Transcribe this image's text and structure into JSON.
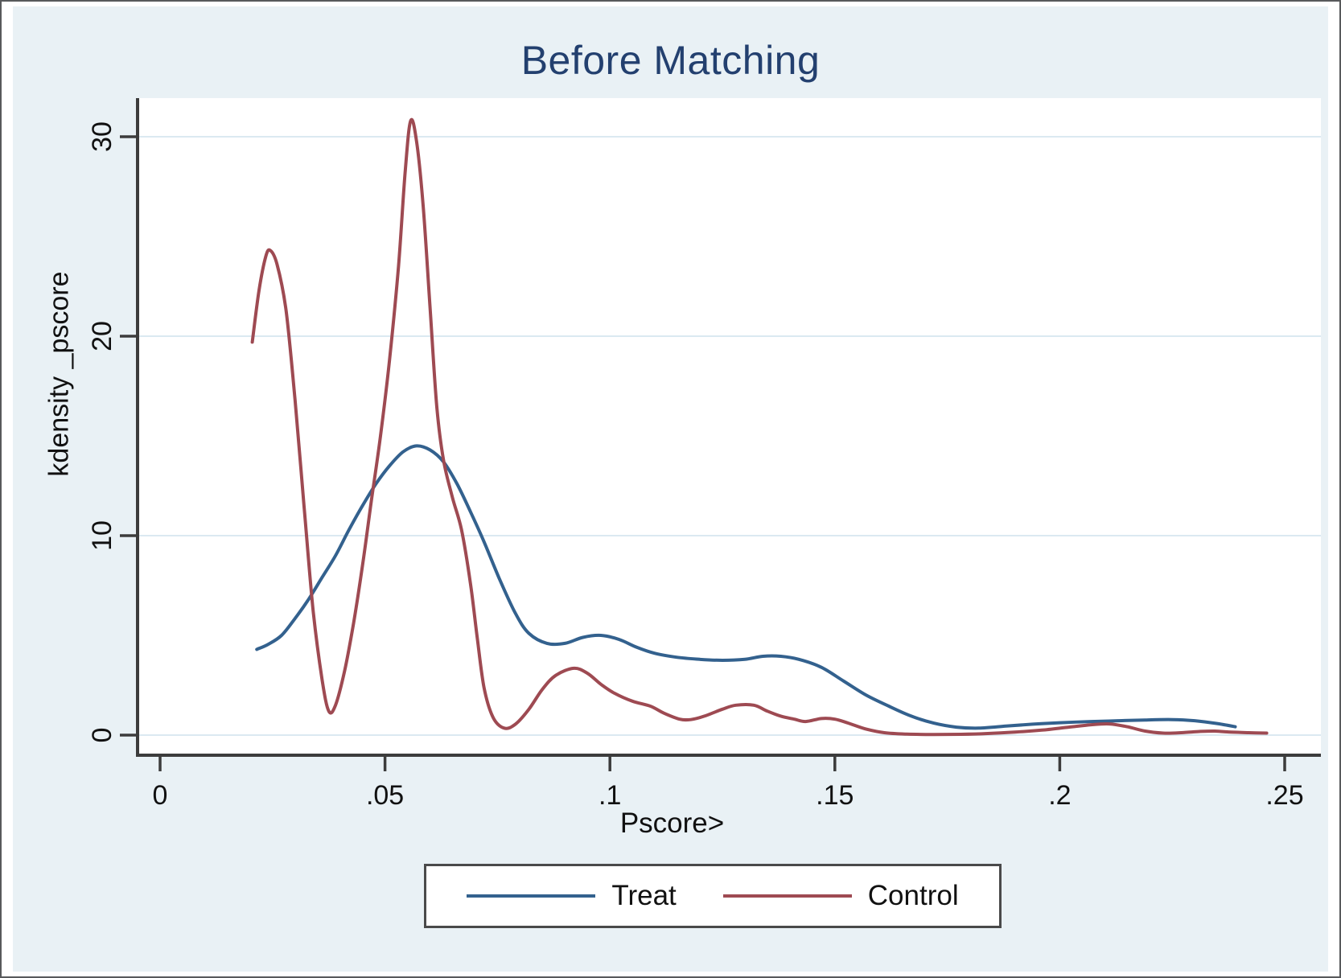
{
  "title": "Before Matching",
  "axes": {
    "x_title": "Pscore>",
    "y_title": "kdensity _pscore",
    "x_ticks": [
      {
        "value": 0,
        "label": "0"
      },
      {
        "value": 0.05,
        "label": ".05"
      },
      {
        "value": 0.1,
        "label": ".1"
      },
      {
        "value": 0.15,
        "label": ".15"
      },
      {
        "value": 0.2,
        "label": ".2"
      },
      {
        "value": 0.25,
        "label": ".25"
      }
    ],
    "y_ticks": [
      {
        "value": 0,
        "label": "0"
      },
      {
        "value": 10,
        "label": "10"
      },
      {
        "value": 20,
        "label": "20"
      },
      {
        "value": 30,
        "label": "30"
      }
    ]
  },
  "legend": {
    "items": [
      {
        "label": "Treat",
        "color": "#33618e"
      },
      {
        "label": "Control",
        "color": "#9e4a52"
      }
    ]
  },
  "colors": {
    "background": "#e9f1f5",
    "plot_background": "#ffffff",
    "gridline": "#dbe9f1",
    "axis": "#3c3c3c",
    "title_text": "#23406f",
    "treat_line": "#33618e",
    "control_line": "#9e4a52"
  },
  "chart_data": {
    "type": "line",
    "title": "Before Matching",
    "xlabel": "Pscore>",
    "ylabel": "kdensity _pscore",
    "xlim": [
      0,
      0.25
    ],
    "ylim": [
      0,
      31
    ],
    "grid": true,
    "legend_position": "bottom-center",
    "series": [
      {
        "name": "Treat",
        "color": "#33618e",
        "points": [
          [
            0.0215,
            4.3
          ],
          [
            0.024,
            4.55
          ],
          [
            0.027,
            5.0
          ],
          [
            0.03,
            5.85
          ],
          [
            0.033,
            6.8
          ],
          [
            0.036,
            7.9
          ],
          [
            0.039,
            9.0
          ],
          [
            0.042,
            10.3
          ],
          [
            0.045,
            11.5
          ],
          [
            0.048,
            12.6
          ],
          [
            0.051,
            13.5
          ],
          [
            0.054,
            14.2
          ],
          [
            0.057,
            14.5
          ],
          [
            0.06,
            14.3
          ],
          [
            0.063,
            13.7
          ],
          [
            0.066,
            12.6
          ],
          [
            0.069,
            11.2
          ],
          [
            0.072,
            9.7
          ],
          [
            0.0755,
            7.8
          ],
          [
            0.079,
            6.1
          ],
          [
            0.082,
            5.1
          ],
          [
            0.086,
            4.6
          ],
          [
            0.09,
            4.6
          ],
          [
            0.094,
            4.9
          ],
          [
            0.098,
            5.0
          ],
          [
            0.102,
            4.8
          ],
          [
            0.106,
            4.4
          ],
          [
            0.11,
            4.1
          ],
          [
            0.115,
            3.9
          ],
          [
            0.12,
            3.8
          ],
          [
            0.125,
            3.75
          ],
          [
            0.13,
            3.8
          ],
          [
            0.134,
            3.95
          ],
          [
            0.138,
            3.95
          ],
          [
            0.142,
            3.8
          ],
          [
            0.147,
            3.4
          ],
          [
            0.152,
            2.7
          ],
          [
            0.157,
            2.0
          ],
          [
            0.162,
            1.45
          ],
          [
            0.167,
            0.95
          ],
          [
            0.172,
            0.6
          ],
          [
            0.177,
            0.4
          ],
          [
            0.182,
            0.35
          ],
          [
            0.188,
            0.45
          ],
          [
            0.194,
            0.55
          ],
          [
            0.2,
            0.62
          ],
          [
            0.207,
            0.68
          ],
          [
            0.213,
            0.72
          ],
          [
            0.219,
            0.76
          ],
          [
            0.225,
            0.78
          ],
          [
            0.23,
            0.72
          ],
          [
            0.235,
            0.58
          ],
          [
            0.239,
            0.42
          ]
        ]
      },
      {
        "name": "Control",
        "color": "#9e4a52",
        "points": [
          [
            0.0205,
            19.7
          ],
          [
            0.022,
            22.3
          ],
          [
            0.0235,
            24.0
          ],
          [
            0.0245,
            24.3
          ],
          [
            0.026,
            23.6
          ],
          [
            0.028,
            21.3
          ],
          [
            0.03,
            16.8
          ],
          [
            0.032,
            11.5
          ],
          [
            0.034,
            6.3
          ],
          [
            0.036,
            2.8
          ],
          [
            0.0375,
            1.2
          ],
          [
            0.039,
            1.5
          ],
          [
            0.041,
            3.2
          ],
          [
            0.043,
            5.6
          ],
          [
            0.045,
            8.5
          ],
          [
            0.047,
            11.8
          ],
          [
            0.049,
            15.0
          ],
          [
            0.051,
            18.8
          ],
          [
            0.053,
            23.5
          ],
          [
            0.0545,
            28.3
          ],
          [
            0.0557,
            30.8
          ],
          [
            0.057,
            29.8
          ],
          [
            0.0585,
            26.5
          ],
          [
            0.06,
            21.5
          ],
          [
            0.0615,
            16.5
          ],
          [
            0.063,
            13.8
          ],
          [
            0.065,
            11.9
          ],
          [
            0.067,
            10.3
          ],
          [
            0.069,
            7.6
          ],
          [
            0.0705,
            4.9
          ],
          [
            0.072,
            2.4
          ],
          [
            0.074,
            0.9
          ],
          [
            0.0765,
            0.35
          ],
          [
            0.079,
            0.55
          ],
          [
            0.082,
            1.3
          ],
          [
            0.085,
            2.3
          ],
          [
            0.088,
            3.0
          ],
          [
            0.092,
            3.35
          ],
          [
            0.095,
            3.1
          ],
          [
            0.098,
            2.55
          ],
          [
            0.101,
            2.1
          ],
          [
            0.105,
            1.7
          ],
          [
            0.109,
            1.45
          ],
          [
            0.112,
            1.1
          ],
          [
            0.1155,
            0.8
          ],
          [
            0.118,
            0.78
          ],
          [
            0.121,
            0.95
          ],
          [
            0.125,
            1.3
          ],
          [
            0.128,
            1.5
          ],
          [
            0.132,
            1.5
          ],
          [
            0.135,
            1.2
          ],
          [
            0.138,
            0.95
          ],
          [
            0.141,
            0.8
          ],
          [
            0.1435,
            0.68
          ],
          [
            0.147,
            0.83
          ],
          [
            0.15,
            0.8
          ],
          [
            0.153,
            0.6
          ],
          [
            0.157,
            0.3
          ],
          [
            0.161,
            0.12
          ],
          [
            0.166,
            0.05
          ],
          [
            0.172,
            0.03
          ],
          [
            0.178,
            0.04
          ],
          [
            0.184,
            0.08
          ],
          [
            0.19,
            0.15
          ],
          [
            0.196,
            0.25
          ],
          [
            0.202,
            0.4
          ],
          [
            0.207,
            0.52
          ],
          [
            0.211,
            0.56
          ],
          [
            0.215,
            0.42
          ],
          [
            0.219,
            0.2
          ],
          [
            0.223,
            0.1
          ],
          [
            0.227,
            0.12
          ],
          [
            0.231,
            0.18
          ],
          [
            0.2345,
            0.2
          ],
          [
            0.238,
            0.15
          ],
          [
            0.242,
            0.12
          ],
          [
            0.246,
            0.1
          ]
        ]
      }
    ]
  }
}
